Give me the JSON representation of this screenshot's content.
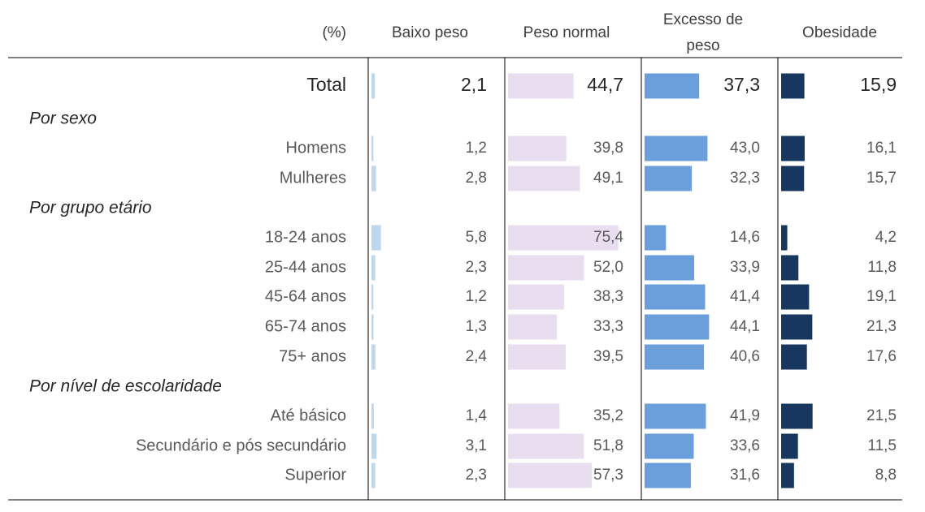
{
  "chart_data": {
    "type": "table",
    "header": {
      "unit": "(%)",
      "columns": [
        "Baixo peso",
        "Peso normal",
        "Excesso de peso",
        "Obesidade"
      ]
    },
    "colors": {
      "baixo_peso": "#bdd7ee",
      "peso_normal": "#e8deef",
      "excesso_de_peso": "#6a9fdc",
      "obesidade": "#17375e"
    },
    "total": {
      "label": "Total",
      "values": [
        2.1,
        44.7,
        37.3,
        15.9
      ],
      "display": [
        "2,1",
        "44,7",
        "37,3",
        "15,9"
      ]
    },
    "groups": [
      {
        "label": "Por sexo",
        "rows": [
          {
            "label": "Homens",
            "values": [
              1.2,
              39.8,
              43.0,
              16.1
            ],
            "display": [
              "1,2",
              "39,8",
              "43,0",
              "16,1"
            ]
          },
          {
            "label": "Mulheres",
            "values": [
              2.8,
              49.1,
              32.3,
              15.7
            ],
            "display": [
              "2,8",
              "49,1",
              "32,3",
              "15,7"
            ]
          }
        ]
      },
      {
        "label": "Por grupo etário",
        "rows": [
          {
            "label": "18-24 anos",
            "values": [
              5.8,
              75.4,
              14.6,
              4.2
            ],
            "display": [
              "5,8",
              "75,4",
              "14,6",
              "4,2"
            ]
          },
          {
            "label": "25-44 anos",
            "values": [
              2.3,
              52.0,
              33.9,
              11.8
            ],
            "display": [
              "2,3",
              "52,0",
              "33,9",
              "11,8"
            ]
          },
          {
            "label": "45-64 anos",
            "values": [
              1.2,
              38.3,
              41.4,
              19.1
            ],
            "display": [
              "1,2",
              "38,3",
              "41,4",
              "19,1"
            ]
          },
          {
            "label": "65-74 anos",
            "values": [
              1.3,
              33.3,
              44.1,
              21.3
            ],
            "display": [
              "1,3",
              "33,3",
              "44,1",
              "21,3"
            ]
          },
          {
            "label": "75+ anos",
            "values": [
              2.4,
              39.5,
              40.6,
              17.6
            ],
            "display": [
              "2,4",
              "39,5",
              "40,6",
              "17,6"
            ]
          }
        ]
      },
      {
        "label": "Por nível de escolaridade",
        "rows": [
          {
            "label": "Até básico",
            "values": [
              1.4,
              35.2,
              41.9,
              21.5
            ],
            "display": [
              "1,4",
              "35,2",
              "41,9",
              "21,5"
            ]
          },
          {
            "label": "Secundário e pós secundário",
            "values": [
              3.1,
              51.8,
              33.6,
              11.5
            ],
            "display": [
              "3,1",
              "51,8",
              "33,6",
              "11,5"
            ]
          },
          {
            "label": "Superior",
            "values": [
              2.3,
              57.3,
              31.6,
              8.8
            ],
            "display": [
              "2,3",
              "57,3",
              "31,6",
              "8,8"
            ]
          }
        ]
      }
    ]
  }
}
